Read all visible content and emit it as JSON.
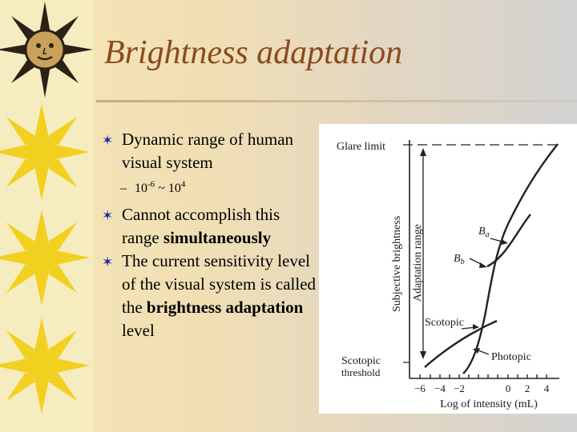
{
  "slide": {
    "title": "Brightness adaptation",
    "bullets": [
      {
        "text": "Dynamic range of human visual system"
      },
      {
        "text": "Cannot accomplish this range ",
        "bold": "simultaneously"
      },
      {
        "text": "The current sensitivity level of the visual system is called the ",
        "bold": "brightness adaptation",
        "tail": " level"
      }
    ],
    "subbullet": {
      "dash": "–",
      "base1": "10",
      "exp1": "-6",
      "sep": " ~ ",
      "base2": "10",
      "exp2": "4"
    }
  },
  "figure": {
    "glare_limit": "Glare limit",
    "y_axis_label": "Subjective brightness",
    "adaptation_range_label": "Adaptation range",
    "ba_label": "B",
    "ba_sub": "a",
    "bb_label": "B",
    "bb_sub": "b",
    "scotopic_label": "Scotopic",
    "photopic_label": "Photopic",
    "scotopic_threshold_line1": "Scotopic",
    "scotopic_threshold_line2": "threshold",
    "x_axis_label": "Log of intensity (mL)",
    "x_ticks": [
      "−6",
      "−4",
      "−2",
      "0",
      "2",
      "4"
    ]
  }
}
